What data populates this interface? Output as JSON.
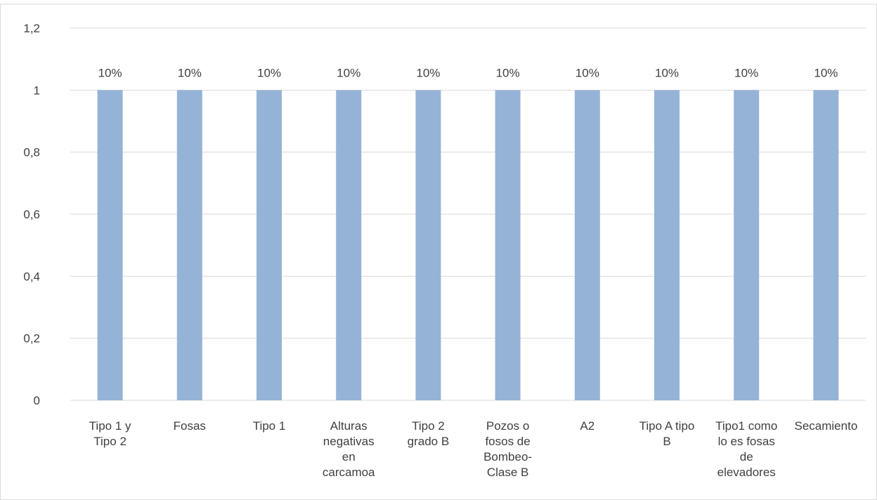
{
  "chart_data": {
    "type": "bar",
    "title": "",
    "xlabel": "",
    "ylabel": "",
    "categories": [
      [
        "Tipo 1 y",
        "Tipo 2"
      ],
      [
        "Fosas"
      ],
      [
        "Tipo 1"
      ],
      [
        "Alturas",
        "negativas",
        "en",
        "carcamoa"
      ],
      [
        "Tipo 2",
        "grado B"
      ],
      [
        "Pozos o",
        "fosos  de",
        "Bombeo-",
        "Clase B"
      ],
      [
        "A2"
      ],
      [
        "Tipo A tipo",
        "B"
      ],
      [
        "Tipo1 como",
        "lo es fosas",
        "de",
        "elevadores"
      ],
      [
        "Secamiento"
      ]
    ],
    "values": [
      1,
      1,
      1,
      1,
      1,
      1,
      1,
      1,
      1,
      1
    ],
    "data_labels": [
      "10%",
      "10%",
      "10%",
      "10%",
      "10%",
      "10%",
      "10%",
      "10%",
      "10%",
      "10%"
    ],
    "y_ticks": [
      "0",
      "0,2",
      "0,4",
      "0,6",
      "0,8",
      "1",
      "1,2"
    ],
    "ylim": [
      0,
      1.2
    ],
    "grid": true,
    "legend": "none",
    "bar_color": "#95b3d7",
    "grid_color": "#d9d9d9",
    "text_color": "#404040"
  }
}
